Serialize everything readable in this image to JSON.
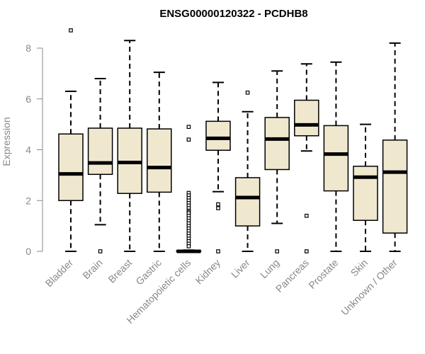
{
  "chart_data": {
    "type": "boxplot",
    "title": "ENSG00000120322 - PCDHB8",
    "xlabel": "",
    "ylabel": "Expression",
    "ylim": [
      0,
      8
    ],
    "yticks": [
      0,
      2,
      4,
      6,
      8
    ],
    "grid": false,
    "legend": "none",
    "box_fill": "#efe8cf",
    "box_stroke": "#000000",
    "categories": [
      "Bladder",
      "Brain",
      "Breast",
      "Gastric",
      "Hematopoietic cells",
      "Kidney",
      "Liver",
      "Lung",
      "Pancreas",
      "Prostate",
      "Skin",
      "Unknown / Other"
    ],
    "boxes": [
      {
        "min": 0,
        "q1": 2.0,
        "median": 3.05,
        "q3": 4.62,
        "max": 6.3,
        "outliers": [
          8.7
        ]
      },
      {
        "min": 1.05,
        "q1": 3.03,
        "median": 3.48,
        "q3": 4.85,
        "max": 6.8,
        "outliers": [
          0
        ]
      },
      {
        "min": 0,
        "q1": 2.28,
        "median": 3.5,
        "q3": 4.85,
        "max": 8.3,
        "outliers": []
      },
      {
        "min": 0,
        "q1": 2.33,
        "median": 3.3,
        "q3": 4.82,
        "max": 7.05,
        "outliers": []
      },
      {
        "min": 0,
        "q1": 0,
        "median": 0,
        "q3": 0.02,
        "max": 0.05,
        "outliers": [
          4.9,
          4.4,
          2.3,
          2.2,
          2.1,
          2.0,
          1.9,
          1.8,
          1.7,
          1.6,
          1.55,
          1.5,
          1.4,
          1.3,
          1.2,
          1.1,
          1.0,
          0.9,
          0.8,
          0.7,
          0.6,
          0.5,
          0.4,
          0.3,
          0.2
        ]
      },
      {
        "min": 2.35,
        "q1": 3.98,
        "median": 4.45,
        "q3": 5.12,
        "max": 6.65,
        "outliers": [
          1.85,
          1.7,
          0
        ]
      },
      {
        "min": 0,
        "q1": 1.0,
        "median": 2.12,
        "q3": 2.9,
        "max": 5.5,
        "outliers": [
          6.25
        ]
      },
      {
        "min": 1.1,
        "q1": 3.22,
        "median": 4.42,
        "q3": 5.27,
        "max": 7.1,
        "outliers": [
          0
        ]
      },
      {
        "min": 3.95,
        "q1": 4.55,
        "median": 4.98,
        "q3": 5.95,
        "max": 7.38,
        "outliers": [
          1.4,
          0
        ]
      },
      {
        "min": 0,
        "q1": 2.38,
        "median": 3.83,
        "q3": 4.95,
        "max": 7.45,
        "outliers": []
      },
      {
        "min": 0,
        "q1": 1.22,
        "median": 2.92,
        "q3": 3.35,
        "max": 5.0,
        "outliers": []
      },
      {
        "min": 0,
        "q1": 0.72,
        "median": 3.12,
        "q3": 4.38,
        "max": 8.2,
        "outliers": []
      }
    ]
  }
}
